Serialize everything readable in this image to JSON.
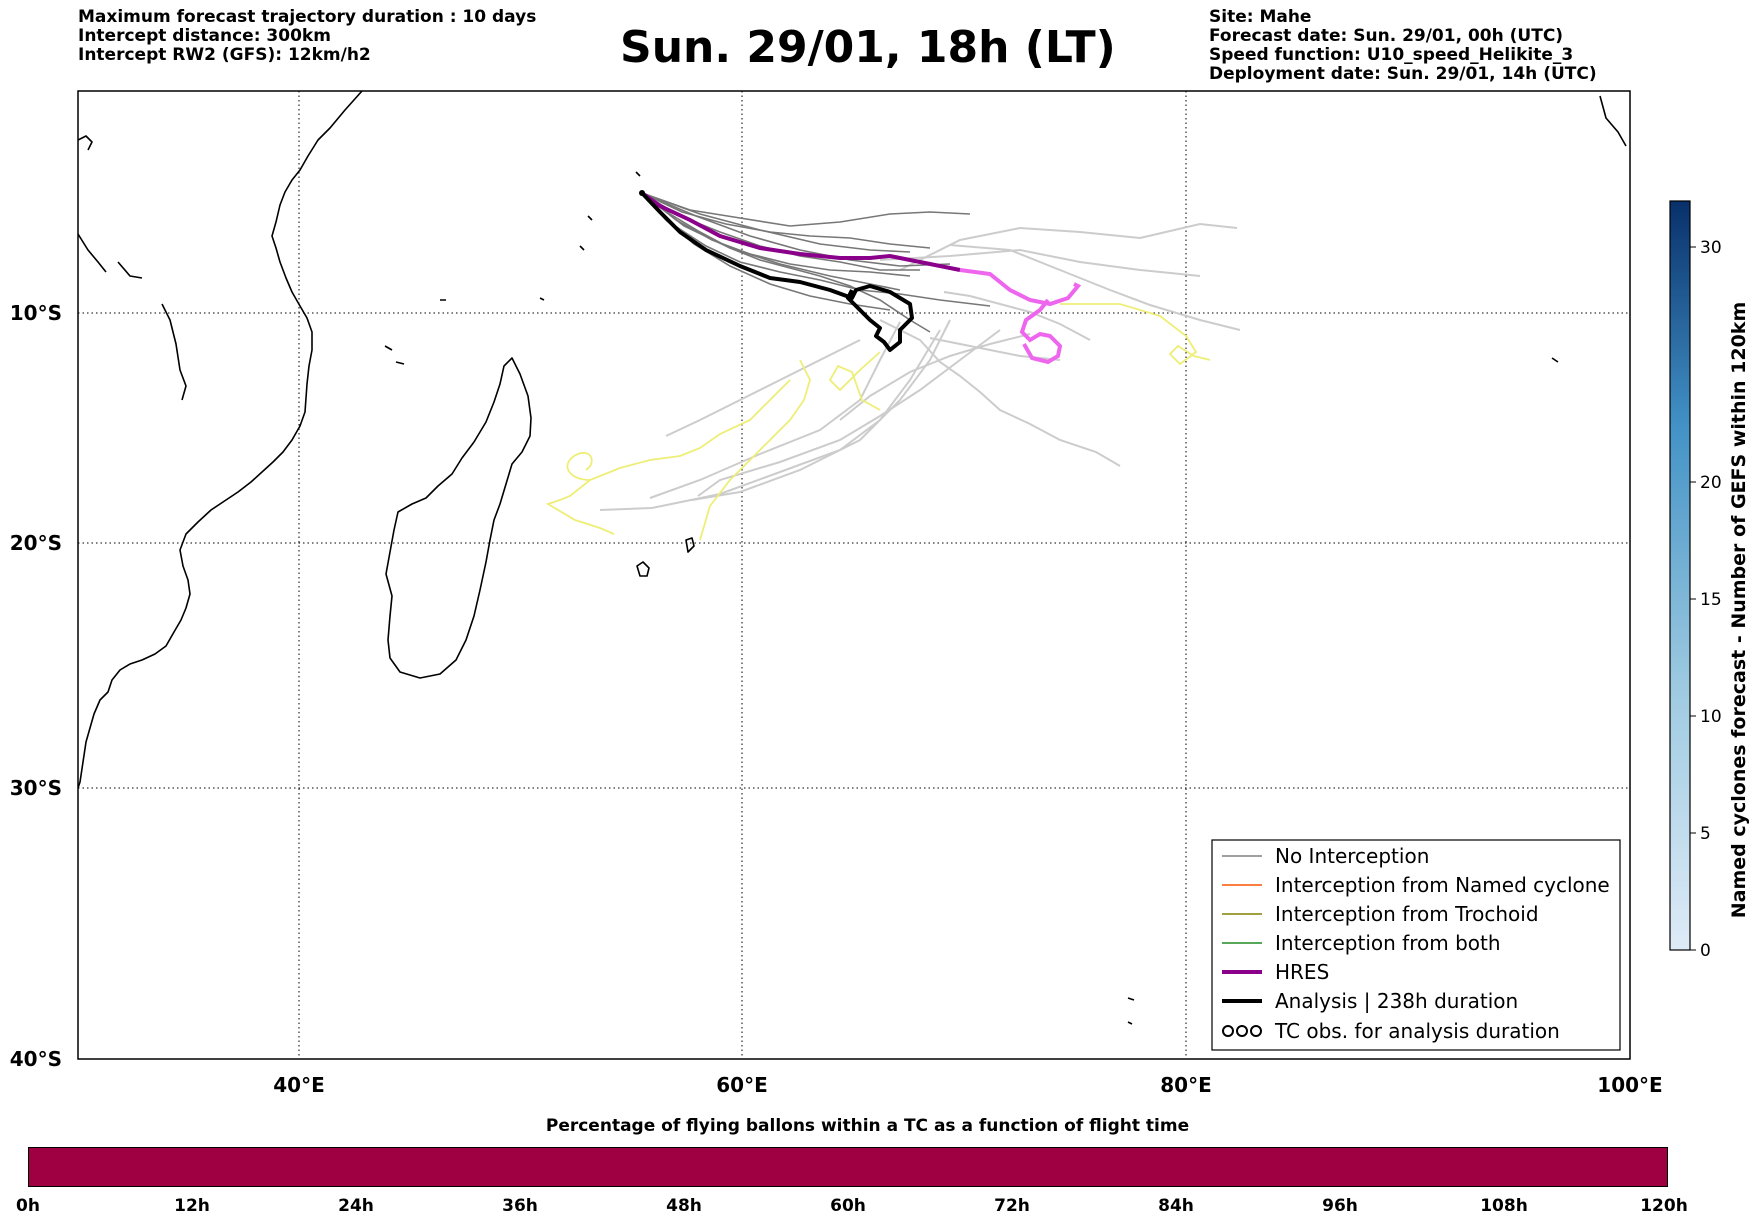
{
  "header": {
    "left_lines": [
      "Maximum forecast trajectory duration : 10 days",
      "Intercept distance: 300km",
      "Intercept RW2 (GFS):  12km/h2"
    ],
    "title": "Sun. 29/01, 18h (LT)",
    "right_lines": [
      "Site: Mahe",
      "Forecast date: Sun. 29/01, 00h (UTC)",
      "Speed function: U10_speed_Helikite_3",
      "Deployment date: Sun. 29/01, 14h (UTC)"
    ]
  },
  "map": {
    "lon_range": [
      30,
      100
    ],
    "lat_range": [
      -40,
      0
    ],
    "lat_labels": [
      {
        "lat": -10,
        "text": "10°S"
      },
      {
        "lat": -20,
        "text": "20°S"
      },
      {
        "lat": -30,
        "text": "30°S"
      },
      {
        "lat": -40,
        "text": "40°S"
      }
    ],
    "lon_labels": [
      {
        "lon": 40,
        "text": "40°E"
      },
      {
        "lon": 60,
        "text": "60°E"
      },
      {
        "lon": 80,
        "text": "80°E"
      },
      {
        "lon": 100,
        "text": "100°E"
      }
    ],
    "colors": {
      "no_interception": "#808080",
      "ensemble_light": "#cccccc",
      "named_cyclone": "#ff5500",
      "trochoid": "#808000",
      "both": "#228b22",
      "hres": "#8b008b",
      "hres_late": "#ee66ee",
      "analysis": "#000000",
      "tc_obs": "#eeee77"
    },
    "launch_site": {
      "lon": 55.5,
      "lat": -4.6
    }
  },
  "legend": {
    "items": [
      {
        "label": "No Interception",
        "style": "thin",
        "color": "#808080"
      },
      {
        "label": "Interception from Named cyclone",
        "style": "thin",
        "color": "#ff5500"
      },
      {
        "label": "Interception from Trochoid",
        "style": "thin",
        "color": "#808000"
      },
      {
        "label": "Interception from both",
        "style": "thin",
        "color": "#228b22"
      },
      {
        "label": "HRES",
        "style": "thick",
        "color": "#8b008b"
      },
      {
        "label": "Analysis | 238h duration",
        "style": "thick",
        "color": "#000000"
      },
      {
        "label": "TC obs. for analysis duration",
        "style": "swirl",
        "color": "#000000"
      }
    ]
  },
  "colorbar": {
    "label": "Named cyclones forecast - Number of GEFS within 120km",
    "ticks": [
      "0",
      "5",
      "10",
      "15",
      "20",
      "30"
    ],
    "min_color": "#deebf7",
    "max_color": "#08306b"
  },
  "percentage_bar": {
    "title": "Percentage of flying ballons within a TC as a function of flight time",
    "color": "#9e0041",
    "ticks": [
      "0h",
      "12h",
      "24h",
      "36h",
      "48h",
      "60h",
      "72h",
      "84h",
      "96h",
      "108h",
      "120h"
    ]
  }
}
